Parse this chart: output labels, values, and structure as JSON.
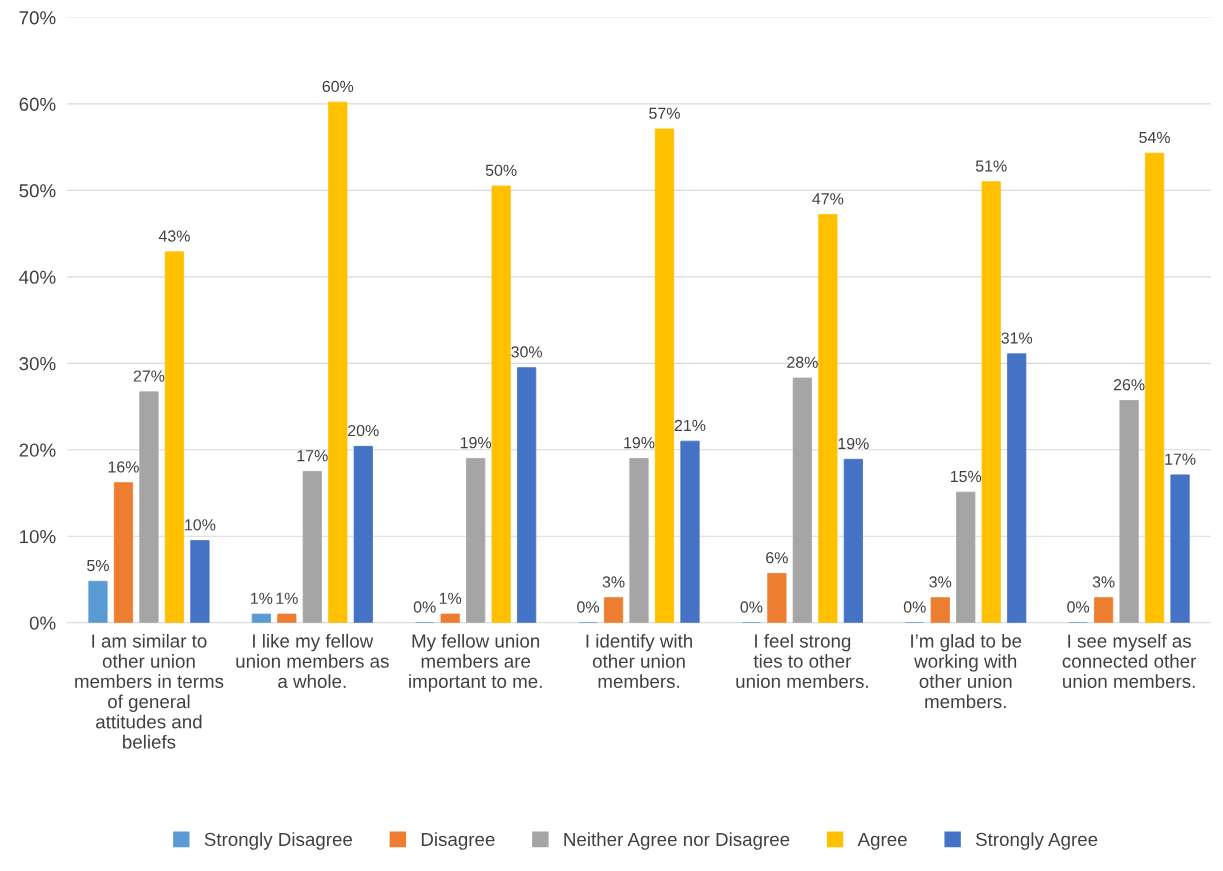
{
  "chart_data": {
    "type": "bar",
    "categories": [
      "I am similar to other union members in terms of general attitudes and beliefs",
      "I like my fellow union members as a whole.",
      "My fellow union members are important to me.",
      "I identify with other union members.",
      "I feel strong ties to other union members.",
      "I’m glad to be working with other union members.",
      "I see myself as connected other union members."
    ],
    "series": [
      {
        "name": "Strongly Disagree",
        "color": "#5b9bd5",
        "values": [
          4.8,
          1.0,
          0,
          0,
          0,
          0,
          0
        ],
        "value_labels": [
          "5%",
          "1%",
          "0%",
          "0%",
          "0%",
          "0%",
          "0%"
        ]
      },
      {
        "name": "Disagree",
        "color": "#ed7d31",
        "values": [
          16.2,
          1.0,
          1.0,
          2.9,
          5.7,
          2.9,
          2.9
        ],
        "value_labels": [
          "16%",
          "1%",
          "1%",
          "3%",
          "6%",
          "3%",
          "3%"
        ]
      },
      {
        "name": "Neither Agree nor Disagree",
        "color": "#a5a5a5",
        "values": [
          26.7,
          17.5,
          19.0,
          19.0,
          28.3,
          15.1,
          25.7
        ],
        "value_labels": [
          "27%",
          "17%",
          "19%",
          "19%",
          "28%",
          "15%",
          "26%"
        ]
      },
      {
        "name": "Agree",
        "color": "#ffc000",
        "values": [
          42.9,
          60.2,
          50.5,
          57.1,
          47.2,
          51.0,
          54.3
        ],
        "value_labels": [
          "43%",
          "60%",
          "50%",
          "57%",
          "47%",
          "51%",
          "54%"
        ]
      },
      {
        "name": "Strongly Agree",
        "color": "#4472c4",
        "values": [
          9.5,
          20.4,
          29.5,
          21.0,
          18.9,
          31.1,
          17.1
        ],
        "value_labels": [
          "10%",
          "20%",
          "30%",
          "21%",
          "19%",
          "31%",
          "17%"
        ]
      }
    ],
    "ylim": [
      0,
      70
    ],
    "yticks": [
      {
        "value": 0,
        "label": "0%"
      },
      {
        "value": 10,
        "label": "10%"
      },
      {
        "value": 20,
        "label": "20%"
      },
      {
        "value": 30,
        "label": "30%"
      },
      {
        "value": 40,
        "label": "40%"
      },
      {
        "value": 50,
        "label": "50%"
      },
      {
        "value": 60,
        "label": "60%"
      },
      {
        "value": 70,
        "label": "70%"
      }
    ],
    "grid": "y",
    "legend": "bottom"
  }
}
